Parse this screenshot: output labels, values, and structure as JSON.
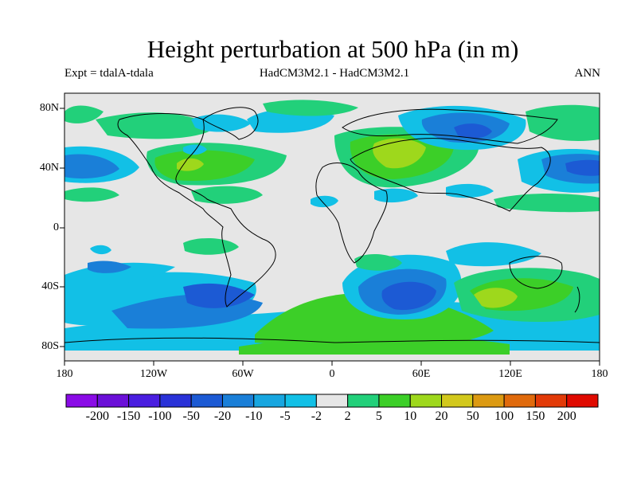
{
  "title": "Height perturbation at 500 hPa (in m)",
  "subtitle_left": "Expt = tdalA-tdala",
  "subtitle_center": "HadCM3M2.1 - HadCM3M2.1",
  "subtitle_right": "ANN",
  "axes": {
    "lat_labels": [
      "80N",
      "40N",
      "0",
      "40S",
      "80S"
    ],
    "lon_labels": [
      "180",
      "120W",
      "60W",
      "0",
      "60E",
      "120E",
      "180"
    ]
  },
  "colorbar": {
    "labels": [
      "-200",
      "-150",
      "-100",
      "-50",
      "-20",
      "-10",
      "-5",
      "-2",
      "2",
      "5",
      "10",
      "20",
      "50",
      "100",
      "150",
      "200"
    ],
    "colors": [
      "#8a0be6",
      "#6b10d8",
      "#4a1ee0",
      "#2a32d8",
      "#1c5ad4",
      "#1a7fd8",
      "#17a6e0",
      "#12c0e6",
      "#e6e6e6",
      "#22d07a",
      "#3ccf28",
      "#9ed81c",
      "#d2c81c",
      "#dc9a12",
      "#e06a0c",
      "#e23a08",
      "#e00a00"
    ]
  },
  "colors": {
    "background": "#e6e6e6",
    "coast": "#000000"
  }
}
